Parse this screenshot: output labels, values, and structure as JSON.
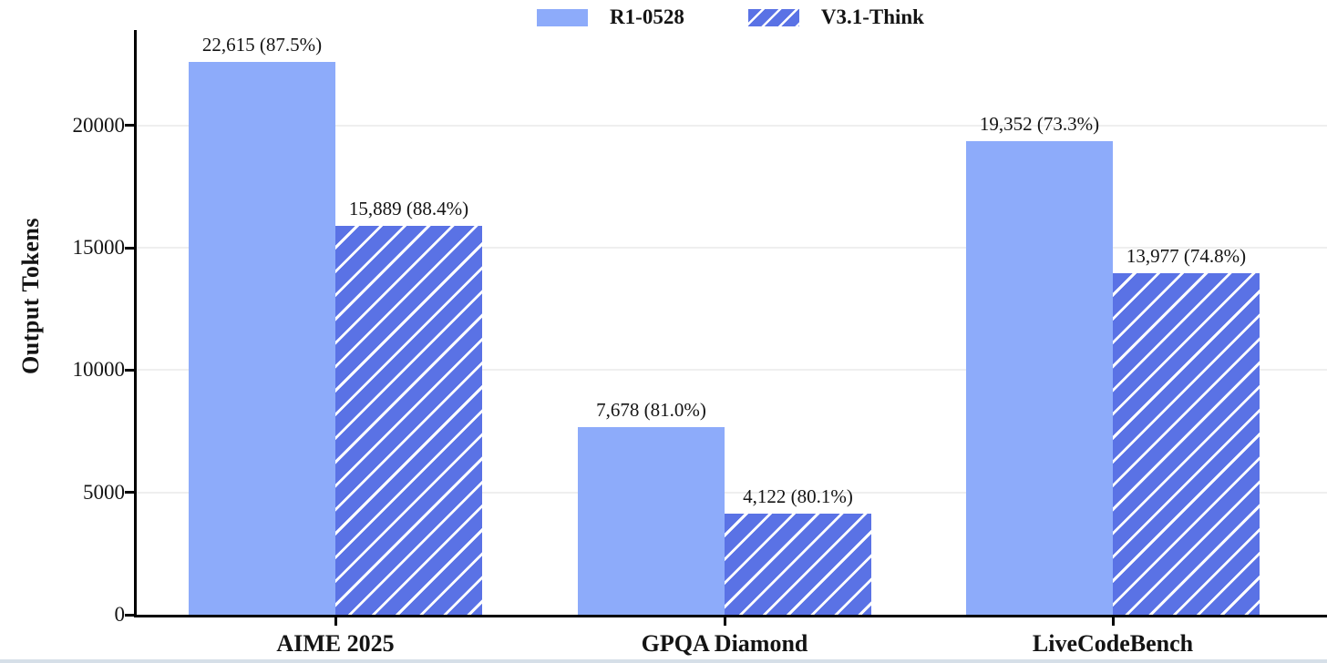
{
  "figure": {
    "background": "#ffffff",
    "bottom_edge_color": "#d6dfe8"
  },
  "legend": {
    "items": [
      {
        "label": "R1-0528",
        "swatch_style": "solid",
        "swatch_color": "#8dabfa"
      },
      {
        "label": "V3.1-Think",
        "swatch_style": "hatched",
        "swatch_color": "#5a72e5",
        "hatch_color": "#ffffff"
      }
    ]
  },
  "chart_data": {
    "type": "bar",
    "title": "",
    "categories": [
      "AIME 2025",
      "GPQA Diamond",
      "LiveCodeBench"
    ],
    "series": [
      {
        "name": "R1-0528",
        "style": "solid",
        "color": "#8dabfa",
        "values": [
          22615,
          7678,
          19352
        ],
        "accuracy_pct": [
          87.5,
          81.0,
          73.3
        ],
        "bar_labels": [
          "22,615 (87.5%)",
          "7,678 (81.0%)",
          "19,352 (73.3%)"
        ]
      },
      {
        "name": "V3.1-Think",
        "style": "hatched",
        "color": "#5a72e5",
        "hatch_color": "#ffffff",
        "values": [
          15889,
          4122,
          13977
        ],
        "accuracy_pct": [
          88.4,
          80.1,
          74.8
        ],
        "bar_labels": [
          "15,889 (88.4%)",
          "4,122 (80.1%)",
          "13,977 (74.8%)"
        ]
      }
    ],
    "xlabel": "",
    "ylabel": "Output Tokens",
    "yticks": [
      0,
      5000,
      10000,
      15000,
      20000
    ],
    "ylim": [
      0,
      23900
    ],
    "grid": "horizontal",
    "grid_color": "#efefef",
    "axis_color": "#000000",
    "text_color": "#141414",
    "legend_position": "top-center"
  }
}
